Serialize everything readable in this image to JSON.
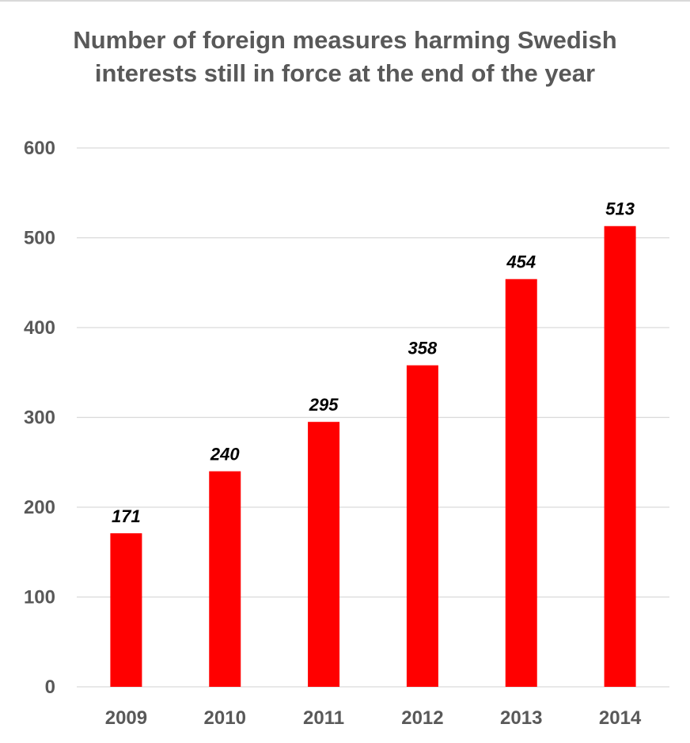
{
  "chart_data": {
    "type": "bar",
    "title": "Number of foreign measures harming Swedish interests still in force at the end of the year",
    "categories": [
      "2009",
      "2010",
      "2011",
      "2012",
      "2013",
      "2014"
    ],
    "values": [
      171,
      240,
      295,
      358,
      454,
      513
    ],
    "data_labels": [
      "171",
      "240",
      "295",
      "358",
      "454",
      "513"
    ],
    "ylim": [
      0,
      600
    ],
    "yticks": [
      0,
      100,
      200,
      300,
      400,
      500,
      600
    ],
    "xlabel": "",
    "ylabel": "",
    "grid": true,
    "legend": "none",
    "bar_color": "#ff0000"
  }
}
